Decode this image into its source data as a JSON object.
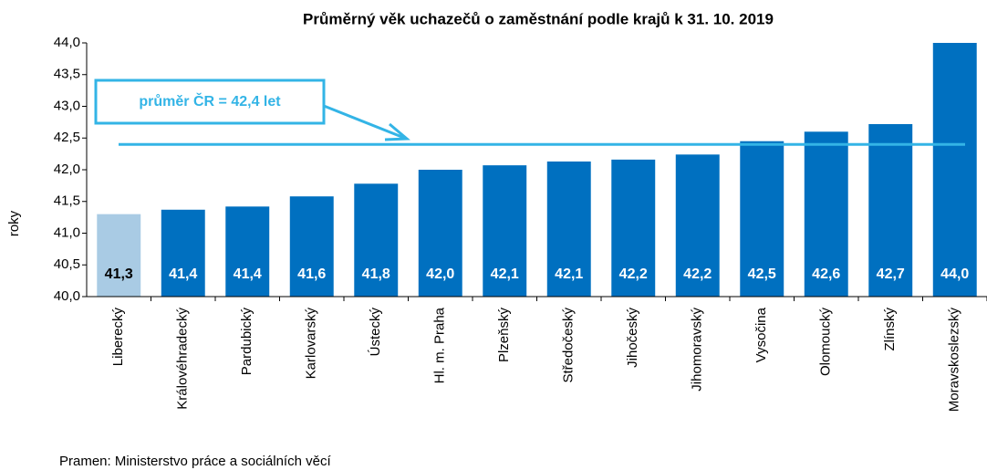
{
  "chart_data": {
    "type": "bar",
    "title": "Průměrný věk uchazečů o zaměstnání podle krajů k 31. 10. 2019",
    "y_label": "roky",
    "source": "Pramen: Ministerstvo práce a sociálních věcí",
    "categories": [
      "Liberecký",
      "Královéhradecký",
      "Pardubický",
      "Karlovarský",
      "Ústecký",
      "Hl. m. Praha",
      "Plzeňský",
      "Středočeský",
      "Jihočeský",
      "Jihomoravský",
      "Vysočina",
      "Olomoucký",
      "Zlínský",
      "Moravskoslezský"
    ],
    "values": [
      41.3,
      41.37,
      41.42,
      41.58,
      41.78,
      42.0,
      42.07,
      42.13,
      42.16,
      42.24,
      42.45,
      42.6,
      42.72,
      44.0
    ],
    "value_labels": [
      "41,3",
      "41,4",
      "41,4",
      "41,6",
      "41,8",
      "42,0",
      "42,1",
      "42,1",
      "42,2",
      "42,2",
      "42,5",
      "42,6",
      "42,7",
      "44,0"
    ],
    "colors": [
      "#a9cbe4",
      "#0070c0",
      "#0070c0",
      "#0070c0",
      "#0070c0",
      "#0070c0",
      "#0070c0",
      "#0070c0",
      "#0070c0",
      "#0070c0",
      "#0070c0",
      "#0070c0",
      "#0070c0",
      "#0070c0"
    ],
    "reference_line": {
      "value": 42.4,
      "label": "průměr ČR = 42,4 let",
      "color": "#33b4e6"
    },
    "ylim": [
      40.0,
      44.0
    ],
    "yticks": [
      {
        "value": 40.0,
        "label": "40,0"
      },
      {
        "value": 40.5,
        "label": "40,5"
      },
      {
        "value": 41.0,
        "label": "41,0"
      },
      {
        "value": 41.5,
        "label": "41,5"
      },
      {
        "value": 42.0,
        "label": "42,0"
      },
      {
        "value": 42.5,
        "label": "42,5"
      },
      {
        "value": 43.0,
        "label": "43,0"
      },
      {
        "value": 43.5,
        "label": "43,5"
      },
      {
        "value": 44.0,
        "label": "44,0"
      }
    ]
  }
}
